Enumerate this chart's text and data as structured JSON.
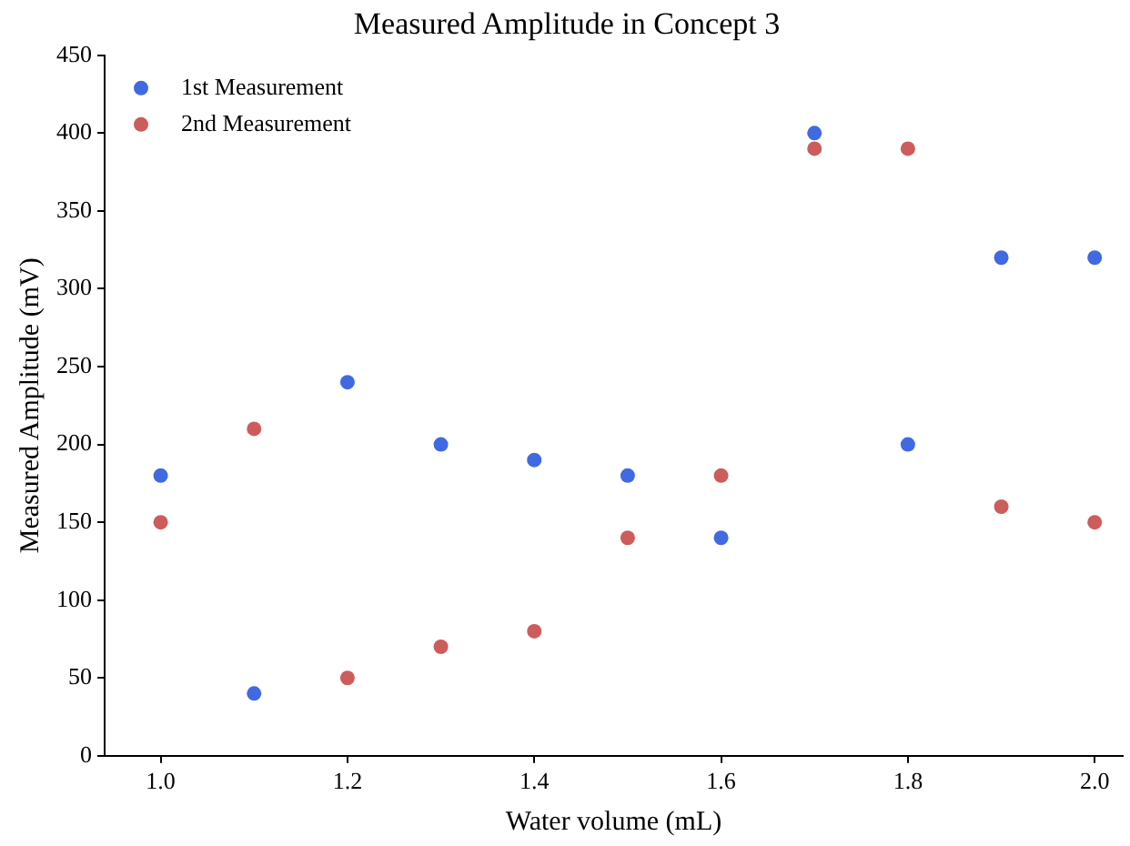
{
  "chart_data": {
    "type": "scatter",
    "title": "Measured Amplitude in Concept 3",
    "xlabel": "Water volume (mL)",
    "ylabel": "Measured Amplitude (mV)",
    "x": [
      1.0,
      1.1,
      1.2,
      1.3,
      1.4,
      1.5,
      1.6,
      1.7,
      1.8,
      1.9,
      2.0
    ],
    "series": [
      {
        "name": "1st Measurement",
        "color": "#4169e1",
        "values": [
          180,
          40,
          240,
          200,
          190,
          180,
          140,
          400,
          200,
          320,
          320
        ]
      },
      {
        "name": "2nd Measurement",
        "color": "#cd5c5c",
        "values": [
          150,
          210,
          50,
          70,
          80,
          140,
          180,
          390,
          390,
          160,
          150
        ]
      }
    ],
    "xlim": [
      0.94,
      2.03
    ],
    "xticks": [
      {
        "value": 1.0,
        "label": "1.0"
      },
      {
        "value": 1.2,
        "label": "1.2"
      },
      {
        "value": 1.4,
        "label": "1.4"
      },
      {
        "value": 1.6,
        "label": "1.6"
      },
      {
        "value": 1.8,
        "label": "1.8"
      },
      {
        "value": 2.0,
        "label": "2.0"
      }
    ],
    "ylim": [
      0,
      450
    ],
    "yticks": [
      0,
      50,
      100,
      150,
      200,
      250,
      300,
      350,
      400,
      450
    ],
    "grid": false,
    "legend": "top left",
    "marker": "circle"
  }
}
